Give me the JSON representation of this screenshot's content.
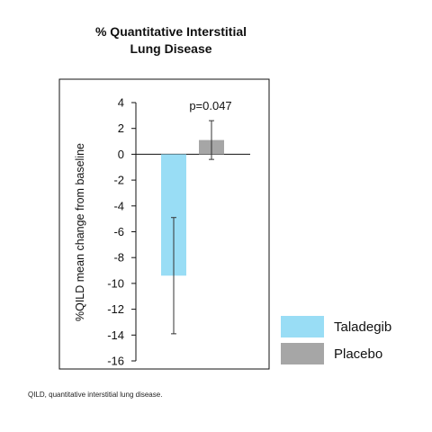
{
  "chart_data": {
    "type": "bar",
    "title": [
      "% Quantitative Interstitial",
      "Lung Disease"
    ],
    "ylabel": "%QILD mean change from baseline",
    "ylim": [
      -16,
      4
    ],
    "yticks": [
      4,
      2,
      0,
      -2,
      -4,
      -6,
      -8,
      -10,
      -12,
      -14,
      -16
    ],
    "grid": false,
    "legend_position": "right",
    "annotation": "p=0.047",
    "series": [
      {
        "name": "Taladegib",
        "value": -9.4,
        "error_low": -13.9,
        "error_high": -4.9,
        "color": "#99DDF5"
      },
      {
        "name": "Placebo",
        "value": 1.1,
        "error_low": -0.4,
        "error_high": 2.6,
        "color": "#A6A6A6"
      }
    ]
  },
  "footnote": "QILD, quantitative interstitial lung disease."
}
